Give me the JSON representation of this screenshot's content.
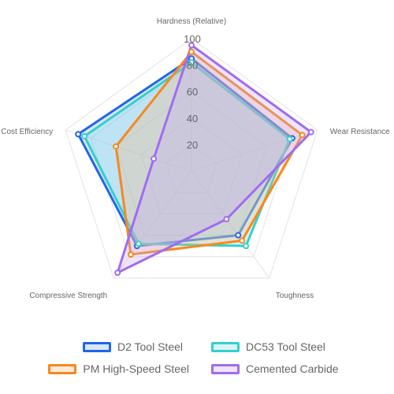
{
  "chart_data": {
    "type": "radar",
    "axes": [
      "Hardness (Relative)",
      "Wear Resistance",
      "Toughness",
      "Compressive Strength",
      "Cost Efficiency"
    ],
    "r_ticks": [
      20,
      40,
      60,
      80,
      100
    ],
    "rlim": [
      0,
      100
    ],
    "grid": true,
    "legend_position": "bottom",
    "series": [
      {
        "name": "D2 Tool Steel",
        "values": [
          85,
          80,
          60,
          70,
          90
        ],
        "color": "#2166e8",
        "fill": "rgba(130,175,245,0.30)"
      },
      {
        "name": "DC53 Tool Steel",
        "values": [
          82,
          78,
          70,
          68,
          85
        ],
        "color": "#36cfc9",
        "fill": "rgba(125,220,225,0.30)"
      },
      {
        "name": "PM High-Speed Steel",
        "values": [
          90,
          88,
          65,
          78,
          60
        ],
        "color": "#f5891f",
        "fill": "rgba(250,185,130,0.30)"
      },
      {
        "name": "Cemented Carbide",
        "values": [
          95,
          95,
          45,
          95,
          30
        ],
        "color": "#a06cf0",
        "fill": "rgba(200,170,245,0.30)"
      }
    ]
  }
}
